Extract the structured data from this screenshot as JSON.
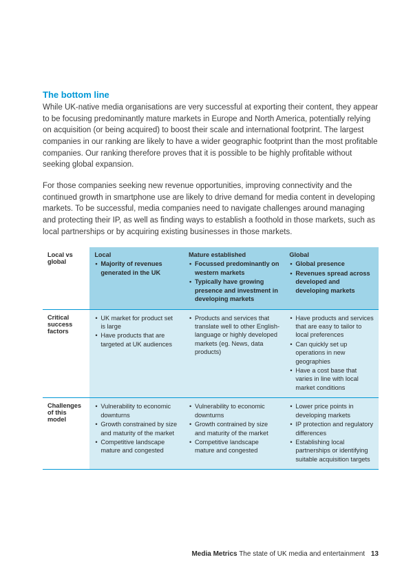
{
  "heading": "The bottom line",
  "para1": "While UK-native media organisations are very successful at exporting their content, they appear to be focusing predominantly mature markets in Europe and North America, potentially relying on acquisition (or being acquired) to boost their scale and international footprint. The largest companies in our ranking are likely to have a wider geographic footprint than the most profitable companies. Our ranking therefore proves that it is possible to be highly profitable without seeking global expansion.",
  "para2": "For those companies seeking new revenue opportunities, improving connectivity and the continued growth in smartphone use are likely to drive demand for media content in developing markets. To be successful, media companies need to navigate challenges around managing and protecting their IP, as well as finding ways to establish a foothold in those markets, such as local partnerships or by acquiring existing businesses in those markets.",
  "table": {
    "header_row_label": "Local vs global",
    "columns": [
      {
        "title": "Local",
        "bullets": [
          "Majority of revenues generated in the UK"
        ]
      },
      {
        "title": "Mature established",
        "bullets": [
          "Focussed predominantly on western markets",
          "Typically have growing presence and investment in developing markets"
        ]
      },
      {
        "title": "Global",
        "bullets": [
          "Global presence",
          "Revenues spread across developed and developing markets"
        ]
      }
    ],
    "rows": [
      {
        "label": "Critical success factors",
        "cells": [
          [
            "UK market for product set is large",
            "Have products that are targeted at UK audiences"
          ],
          [
            "Products and services that translate well to other English-language or highly developed markets (eg. News, data products)"
          ],
          [
            "Have products and services that are easy to tailor to local preferences",
            "Can quickly set up operations in new geographies",
            "Have a cost base that varies in line with local market conditions"
          ]
        ]
      },
      {
        "label": "Challenges of this model",
        "cells": [
          [
            "Vulnerability to economic downturns",
            "Growth constrained by size and maturity of the market",
            "Competitive landscape mature and congested"
          ],
          [
            "Vulnerability to economic downturns",
            "Growth contrained by size and maturity of the market",
            "Competitive landscape mature and congested"
          ],
          [
            "Lower price points in developing markets",
            "IP protection and regulatory differences",
            "Establishing local partnerships or identifying suitable acquisition targets"
          ]
        ]
      }
    ]
  },
  "footer": {
    "bold": "Media Metrics",
    "rest": "The state of UK media and entertainment",
    "page": "13"
  },
  "colors": {
    "accent": "#0097d6",
    "header_bg": "#9fd4e8",
    "cell_bg": "#d5ecf4"
  }
}
